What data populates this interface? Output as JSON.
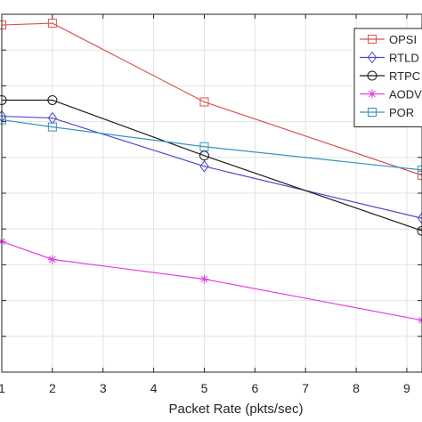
{
  "chart_data": {
    "type": "line",
    "title": "",
    "xlabel": "Packet Rate (pkts/sec)",
    "ylabel": "",
    "x_ticks": [
      "1",
      "2",
      "3",
      "4",
      "5",
      "6",
      "7",
      "8",
      "9"
    ],
    "xlim": [
      1,
      9.3
    ],
    "ylim": [
      0.0,
      1.0
    ],
    "grid": true,
    "legend_position": "top-right",
    "series": [
      {
        "name": "OPSI",
        "color": "#d9534f",
        "marker": "square",
        "points": [
          [
            1,
            0.97
          ],
          [
            2,
            0.975
          ],
          [
            5,
            0.755
          ],
          [
            9.3,
            0.55
          ]
        ]
      },
      {
        "name": "RTLD",
        "color": "#4b4bcc",
        "marker": "diamond",
        "points": [
          [
            1,
            0.715
          ],
          [
            2,
            0.71
          ],
          [
            5,
            0.575
          ],
          [
            9.3,
            0.43
          ]
        ]
      },
      {
        "name": "RTPC",
        "color": "#1a1a1a",
        "marker": "circle",
        "points": [
          [
            1,
            0.76
          ],
          [
            2,
            0.76
          ],
          [
            5,
            0.605
          ],
          [
            9.3,
            0.395
          ]
        ]
      },
      {
        "name": "AODV",
        "color": "#e040e0",
        "marker": "asterisk",
        "points": [
          [
            1,
            0.365
          ],
          [
            2,
            0.315
          ],
          [
            5,
            0.26
          ],
          [
            9.3,
            0.145
          ]
        ]
      },
      {
        "name": "POR",
        "color": "#3a90c0",
        "marker": "square",
        "points": [
          [
            1,
            0.705
          ],
          [
            2,
            0.685
          ],
          [
            5,
            0.63
          ],
          [
            9.3,
            0.565
          ]
        ]
      }
    ]
  }
}
